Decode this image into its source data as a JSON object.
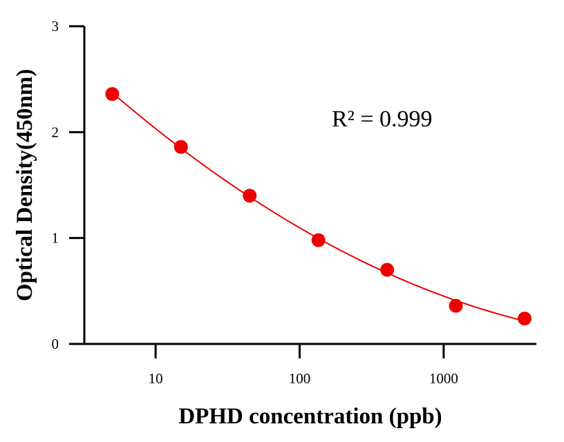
{
  "chart_data": {
    "type": "scatter",
    "title": "",
    "xlabel": "DPHD concentration (ppb)",
    "ylabel": "Optical Density(450nm)",
    "x_scale": "log",
    "xlim": [
      3.2,
      4400
    ],
    "ylim": [
      0,
      3
    ],
    "x_ticks": [
      10,
      100,
      1000
    ],
    "x_tick_labels": [
      "10",
      "100",
      "1000"
    ],
    "y_ticks": [
      0,
      1,
      2,
      3
    ],
    "y_tick_labels": [
      "0",
      "1",
      "2",
      "3"
    ],
    "grid": false,
    "legend": "none",
    "annotation": "R² = 0.999",
    "series": [
      {
        "x": [
          5,
          15,
          45,
          135,
          405,
          1215,
          3645
        ],
        "y": [
          2.36,
          1.86,
          1.4,
          0.98,
          0.7,
          0.36,
          0.24
        ],
        "color": "#ee0000",
        "fit_line": true
      }
    ]
  }
}
